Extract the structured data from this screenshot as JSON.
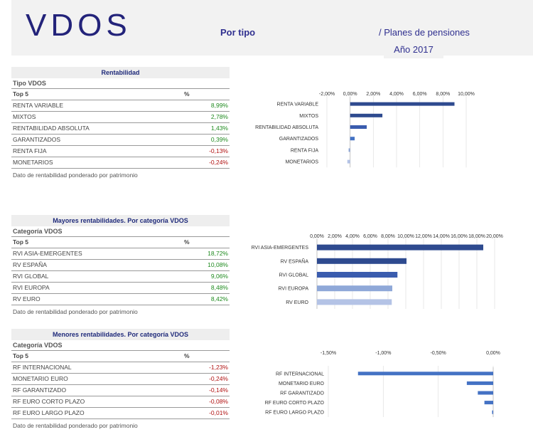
{
  "header": {
    "logo_text": "VDOS",
    "subtitle": "Por tipo",
    "right_title": "/ Planes de pensiones",
    "year": "Año 2017"
  },
  "colors": {
    "accent": "#1f2a7a",
    "bar_dark": "#2e4a8f",
    "bar_mid": "#4472c4",
    "bar_light": "#8fa8d8",
    "bar_lighter": "#b4c3e6",
    "positive": "#1e8a1e",
    "negative": "#b01010"
  },
  "sections": [
    {
      "title": "Rentabilidad",
      "sub": "Tipo VDOS",
      "col1": "Top 5",
      "col2": "%",
      "rows": [
        {
          "name": "RENTA VARIABLE",
          "value": "8,99%",
          "sign": "pos"
        },
        {
          "name": "MIXTOS",
          "value": "2,78%",
          "sign": "pos"
        },
        {
          "name": "RENTABILIDAD ABSOLUTA",
          "value": "1,43%",
          "sign": "pos"
        },
        {
          "name": "GARANTIZADOS",
          "value": "0,39%",
          "sign": "pos"
        },
        {
          "name": "RENTA FIJA",
          "value": "-0,13%",
          "sign": "neg"
        },
        {
          "name": "MONETARIOS",
          "value": "-0,24%",
          "sign": "neg"
        }
      ],
      "note": "Dato de rentabilidad ponderado por patrimonio"
    },
    {
      "title": "Mayores rentabilidades. Por categoría VDOS",
      "sub": "Categoría VDOS",
      "col1": "Top 5",
      "col2": "%",
      "rows": [
        {
          "name": "RVI ASIA-EMERGENTES",
          "value": "18,72%",
          "sign": "pos"
        },
        {
          "name": "RV ESPAÑA",
          "value": "10,08%",
          "sign": "pos"
        },
        {
          "name": "RVI GLOBAL",
          "value": "9,06%",
          "sign": "pos"
        },
        {
          "name": "RVI EUROPA",
          "value": "8,48%",
          "sign": "pos"
        },
        {
          "name": "RV EURO",
          "value": "8,42%",
          "sign": "pos"
        }
      ],
      "note": "Dato de rentabilidad ponderado por patrimonio"
    },
    {
      "title": "Menores rentabilidades. Por categoría VDOS",
      "sub": "Categoría VDOS",
      "col1": "Top 5",
      "col2": "%",
      "rows": [
        {
          "name": "RF INTERNACIONAL",
          "value": "-1,23%",
          "sign": "neg"
        },
        {
          "name": "MONETARIO EURO",
          "value": "-0,24%",
          "sign": "neg"
        },
        {
          "name": "RF GARANTIZADO",
          "value": "-0,14%",
          "sign": "neg"
        },
        {
          "name": "RF EURO CORTO PLAZO",
          "value": "-0,08%",
          "sign": "neg"
        },
        {
          "name": "RF EURO LARGO PLAZO",
          "value": "-0,01%",
          "sign": "neg"
        }
      ],
      "note": "Dato de rentabilidad ponderado por patrimonio"
    }
  ],
  "chart_data": [
    {
      "type": "bar",
      "orientation": "horizontal",
      "categories": [
        "RENTA VARIABLE",
        "MIXTOS",
        "RENTABILIDAD ABSOLUTA",
        "GARANTIZADOS",
        "RENTA FIJA",
        "MONETARIOS"
      ],
      "values": [
        8.99,
        2.78,
        1.43,
        0.39,
        -0.13,
        -0.24
      ],
      "bar_colors": [
        "#2e4a8f",
        "#2e4a8f",
        "#3a5cae",
        "#4472c4",
        "#8fa8d8",
        "#b4c3e6"
      ],
      "xlim": [
        -2,
        10
      ],
      "xticks": [
        -2,
        0,
        2,
        4,
        6,
        8,
        10
      ],
      "xtick_labels": [
        "-2,00%",
        "0,00%",
        "2,00%",
        "4,00%",
        "6,00%",
        "8,00%",
        "10,00%"
      ]
    },
    {
      "type": "bar",
      "orientation": "horizontal",
      "categories": [
        "RVI ASIA-EMERGENTES",
        "RV ESPAÑA",
        "RVI GLOBAL",
        "RVI EUROPA",
        "RV EURO"
      ],
      "values": [
        18.72,
        10.08,
        9.06,
        8.48,
        8.42
      ],
      "bar_colors": [
        "#2e4a8f",
        "#2e4a8f",
        "#3a5cae",
        "#8fa8d8",
        "#b4c3e6"
      ],
      "xlim": [
        0,
        20
      ],
      "xticks": [
        0,
        2,
        4,
        6,
        8,
        10,
        12,
        14,
        16,
        18,
        20
      ],
      "xtick_labels": [
        "0,00%",
        "2,00%",
        "4,00%",
        "6,00%",
        "8,00%",
        "10,00%",
        "12,00%",
        "14,00%",
        "16,00%",
        "18,00%",
        "20,00%"
      ]
    },
    {
      "type": "bar",
      "orientation": "horizontal",
      "categories": [
        "RF INTERNACIONAL",
        "MONETARIO EURO",
        "RF GARANTIZADO",
        "RF EURO CORTO PLAZO",
        "RF EURO LARGO PLAZO"
      ],
      "values": [
        -1.23,
        -0.24,
        -0.14,
        -0.08,
        -0.01
      ],
      "bar_colors": [
        "#4472c4",
        "#4472c4",
        "#4472c4",
        "#4472c4",
        "#4472c4"
      ],
      "xlim": [
        -1.5,
        0
      ],
      "xticks": [
        -1.5,
        -1,
        -0.5,
        0
      ],
      "xtick_labels": [
        "-1,50%",
        "-1,00%",
        "-0,50%",
        "0,00%"
      ]
    }
  ]
}
